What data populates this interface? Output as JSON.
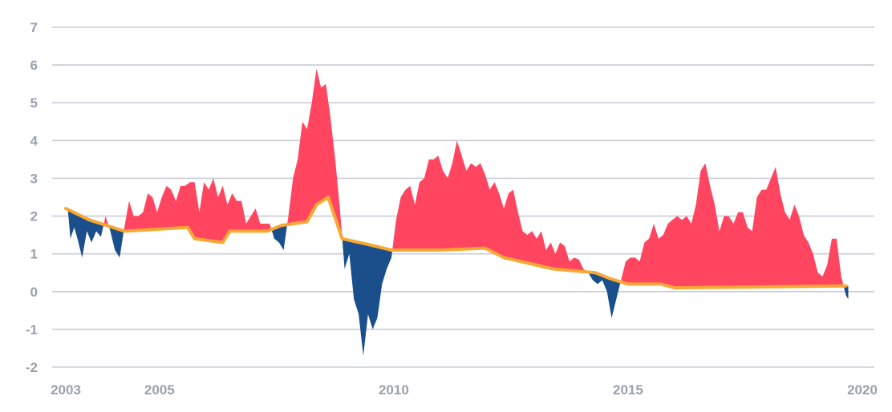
{
  "chart_data": {
    "type": "area",
    "title": "",
    "xlabel": "",
    "ylabel": "",
    "xlim": [
      2003.0,
      2020.0
    ],
    "ylim": [
      -2,
      7
    ],
    "x_ticks": [
      {
        "value": 2003,
        "label": "2003"
      },
      {
        "value": 2005,
        "label": "2005"
      },
      {
        "value": 2010,
        "label": "2010"
      },
      {
        "value": 2015,
        "label": "2015"
      },
      {
        "value": 2020,
        "label": "2020"
      }
    ],
    "y_ticks": [
      {
        "value": 7,
        "label": "7"
      },
      {
        "value": 6,
        "label": "6"
      },
      {
        "value": 5,
        "label": "5"
      },
      {
        "value": 4,
        "label": "4"
      },
      {
        "value": 3,
        "label": "3"
      },
      {
        "value": 2,
        "label": "2"
      },
      {
        "value": 1,
        "label": "1"
      },
      {
        "value": 0,
        "label": "0"
      },
      {
        "value": -1,
        "label": "-1"
      },
      {
        "value": -2,
        "label": "-2"
      }
    ],
    "grid": true,
    "colors": {
      "above": "#ff4560",
      "below": "#1a4f8c",
      "reference_line": "#f7a733",
      "grid": "#c9ccd8",
      "tick_text": "#9aa0ae"
    },
    "series": [
      {
        "values": [
          [
            2003.05,
            2.1
          ],
          [
            2003.1,
            1.4
          ],
          [
            2003.18,
            1.7
          ],
          [
            2003.25,
            1.4
          ],
          [
            2003.35,
            0.9
          ],
          [
            2003.45,
            1.6
          ],
          [
            2003.55,
            1.3
          ],
          [
            2003.65,
            1.6
          ],
          [
            2003.75,
            1.45
          ],
          [
            2003.85,
            2.0
          ],
          [
            2003.95,
            1.6
          ],
          [
            2004.05,
            1.1
          ],
          [
            2004.15,
            0.9
          ],
          [
            2004.25,
            1.7
          ],
          [
            2004.35,
            2.4
          ],
          [
            2004.45,
            2.0
          ],
          [
            2004.55,
            2.0
          ],
          [
            2004.65,
            2.1
          ],
          [
            2004.75,
            2.6
          ],
          [
            2004.85,
            2.5
          ],
          [
            2004.95,
            2.1
          ],
          [
            2005.05,
            2.5
          ],
          [
            2005.15,
            2.8
          ],
          [
            2005.25,
            2.7
          ],
          [
            2005.35,
            2.4
          ],
          [
            2005.45,
            2.8
          ],
          [
            2005.55,
            2.8
          ],
          [
            2005.65,
            2.9
          ],
          [
            2005.75,
            2.9
          ],
          [
            2005.85,
            2.1
          ],
          [
            2005.95,
            2.9
          ],
          [
            2006.05,
            2.7
          ],
          [
            2006.15,
            3.0
          ],
          [
            2006.25,
            2.5
          ],
          [
            2006.35,
            2.8
          ],
          [
            2006.45,
            2.3
          ],
          [
            2006.55,
            2.6
          ],
          [
            2006.65,
            2.4
          ],
          [
            2006.75,
            2.4
          ],
          [
            2006.85,
            1.8
          ],
          [
            2006.95,
            2.0
          ],
          [
            2007.05,
            2.2
          ],
          [
            2007.15,
            1.8
          ],
          [
            2007.25,
            1.8
          ],
          [
            2007.35,
            1.8
          ],
          [
            2007.45,
            1.4
          ],
          [
            2007.55,
            1.3
          ],
          [
            2007.65,
            1.1
          ],
          [
            2007.75,
            2.0
          ],
          [
            2007.85,
            3.0
          ],
          [
            2007.95,
            3.5
          ],
          [
            2008.05,
            4.5
          ],
          [
            2008.15,
            4.3
          ],
          [
            2008.25,
            5.0
          ],
          [
            2008.35,
            5.9
          ],
          [
            2008.45,
            5.4
          ],
          [
            2008.55,
            5.5
          ],
          [
            2008.65,
            4.6
          ],
          [
            2008.75,
            3.5
          ],
          [
            2008.85,
            2.2
          ],
          [
            2008.95,
            0.6
          ],
          [
            2009.05,
            1.0
          ],
          [
            2009.15,
            -0.2
          ],
          [
            2009.25,
            -0.6
          ],
          [
            2009.35,
            -1.7
          ],
          [
            2009.45,
            -0.6
          ],
          [
            2009.55,
            -1.0
          ],
          [
            2009.65,
            -0.7
          ],
          [
            2009.75,
            0.2
          ],
          [
            2009.85,
            0.6
          ],
          [
            2009.95,
            0.9
          ],
          [
            2010.05,
            1.9
          ],
          [
            2010.15,
            2.5
          ],
          [
            2010.25,
            2.7
          ],
          [
            2010.35,
            2.8
          ],
          [
            2010.45,
            2.3
          ],
          [
            2010.55,
            2.9
          ],
          [
            2010.65,
            3.0
          ],
          [
            2010.75,
            3.5
          ],
          [
            2010.85,
            3.5
          ],
          [
            2010.95,
            3.6
          ],
          [
            2011.05,
            3.2
          ],
          [
            2011.15,
            3.0
          ],
          [
            2011.25,
            3.4
          ],
          [
            2011.35,
            4.0
          ],
          [
            2011.45,
            3.6
          ],
          [
            2011.55,
            3.2
          ],
          [
            2011.65,
            3.4
          ],
          [
            2011.75,
            3.3
          ],
          [
            2011.85,
            3.4
          ],
          [
            2011.95,
            3.1
          ],
          [
            2012.05,
            2.7
          ],
          [
            2012.15,
            2.9
          ],
          [
            2012.25,
            2.6
          ],
          [
            2012.35,
            2.2
          ],
          [
            2012.45,
            2.6
          ],
          [
            2012.55,
            2.7
          ],
          [
            2012.65,
            2.1
          ],
          [
            2012.75,
            1.6
          ],
          [
            2012.85,
            1.5
          ],
          [
            2012.95,
            1.6
          ],
          [
            2013.05,
            1.4
          ],
          [
            2013.15,
            1.6
          ],
          [
            2013.25,
            1.1
          ],
          [
            2013.35,
            1.3
          ],
          [
            2013.45,
            1.0
          ],
          [
            2013.55,
            1.3
          ],
          [
            2013.65,
            1.2
          ],
          [
            2013.75,
            0.8
          ],
          [
            2013.85,
            0.9
          ],
          [
            2013.95,
            0.85
          ],
          [
            2014.05,
            0.6
          ],
          [
            2014.15,
            0.5
          ],
          [
            2014.25,
            0.3
          ],
          [
            2014.35,
            0.2
          ],
          [
            2014.45,
            0.3
          ],
          [
            2014.55,
            0.0
          ],
          [
            2014.65,
            -0.7
          ],
          [
            2014.75,
            -0.2
          ],
          [
            2014.85,
            0.3
          ],
          [
            2014.95,
            0.8
          ],
          [
            2015.05,
            0.9
          ],
          [
            2015.15,
            0.9
          ],
          [
            2015.25,
            0.8
          ],
          [
            2015.35,
            1.3
          ],
          [
            2015.45,
            1.4
          ],
          [
            2015.55,
            1.8
          ],
          [
            2015.65,
            1.4
          ],
          [
            2015.75,
            1.5
          ],
          [
            2015.85,
            1.8
          ],
          [
            2015.95,
            1.9
          ],
          [
            2016.05,
            2.0
          ],
          [
            2016.15,
            1.9
          ],
          [
            2016.25,
            2.0
          ],
          [
            2016.35,
            1.8
          ],
          [
            2016.45,
            2.3
          ],
          [
            2016.55,
            3.2
          ],
          [
            2016.65,
            3.4
          ],
          [
            2016.75,
            2.8
          ],
          [
            2016.85,
            2.3
          ],
          [
            2016.95,
            1.6
          ],
          [
            2017.05,
            2.0
          ],
          [
            2017.15,
            2.0
          ],
          [
            2017.25,
            1.8
          ],
          [
            2017.35,
            2.1
          ],
          [
            2017.45,
            2.1
          ],
          [
            2017.55,
            1.7
          ],
          [
            2017.65,
            1.6
          ],
          [
            2017.75,
            2.5
          ],
          [
            2017.85,
            2.7
          ],
          [
            2017.95,
            2.7
          ],
          [
            2018.05,
            3.0
          ],
          [
            2018.15,
            3.3
          ],
          [
            2018.25,
            2.6
          ],
          [
            2018.35,
            2.1
          ],
          [
            2018.45,
            1.9
          ],
          [
            2018.55,
            2.3
          ],
          [
            2018.65,
            2.0
          ],
          [
            2018.75,
            1.5
          ],
          [
            2018.85,
            1.3
          ],
          [
            2018.95,
            1.0
          ],
          [
            2019.05,
            0.5
          ],
          [
            2019.15,
            0.4
          ],
          [
            2019.25,
            0.7
          ],
          [
            2019.35,
            1.4
          ],
          [
            2019.45,
            1.4
          ],
          [
            2019.55,
            0.4
          ],
          [
            2019.65,
            -0.1
          ],
          [
            2019.7,
            -0.2
          ]
        ]
      },
      {
        "values": [
          [
            2003.0,
            2.2
          ],
          [
            2003.5,
            1.9
          ],
          [
            2004.25,
            1.6
          ],
          [
            2005.6,
            1.7
          ],
          [
            2005.75,
            1.4
          ],
          [
            2006.35,
            1.3
          ],
          [
            2006.5,
            1.6
          ],
          [
            2007.3,
            1.6
          ],
          [
            2007.6,
            1.75
          ],
          [
            2008.15,
            1.85
          ],
          [
            2008.35,
            2.3
          ],
          [
            2008.6,
            2.5
          ],
          [
            2008.9,
            1.4
          ],
          [
            2009.45,
            1.25
          ],
          [
            2009.95,
            1.1
          ],
          [
            2011.0,
            1.1
          ],
          [
            2011.95,
            1.15
          ],
          [
            2012.35,
            0.9
          ],
          [
            2013.4,
            0.6
          ],
          [
            2014.3,
            0.5
          ],
          [
            2014.6,
            0.35
          ],
          [
            2015.0,
            0.2
          ],
          [
            2015.7,
            0.2
          ],
          [
            2016.0,
            0.1
          ],
          [
            2019.65,
            0.15
          ]
        ]
      }
    ]
  }
}
